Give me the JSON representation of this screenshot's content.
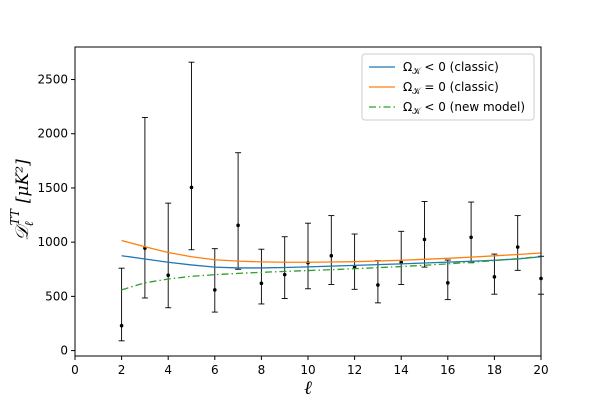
{
  "chart_data": {
    "type": "line",
    "title": "",
    "xlabel": "ℓ",
    "ylabel": "𝒟ℓTT [μK²]",
    "ylabel_main": "𝒟",
    "ylabel_sub": "ℓ",
    "ylabel_sup": "TT",
    "ylabel_unit": "[μK²]",
    "xlim": [
      0,
      20
    ],
    "ylim": [
      -50,
      2800
    ],
    "xticks": [
      0,
      2,
      4,
      6,
      8,
      10,
      12,
      14,
      16,
      18,
      20
    ],
    "yticks": [
      0,
      500,
      1000,
      1500,
      2000,
      2500
    ],
    "grid": false,
    "legend_position": "top-right",
    "colors": {
      "classic_negative": "#1f77b4",
      "classic_flat": "#ff7f0e",
      "new_model": "#2ca02c",
      "errorbars": "#000000"
    },
    "series": [
      {
        "name": "Ω𝒦 < 0 (classic)",
        "label_main": "Ω",
        "label_sub": "𝒦",
        "label_rest": " < 0 (classic)",
        "style": "solid",
        "color_key": "classic_negative",
        "x": [
          2,
          3,
          4,
          5,
          6,
          7,
          8,
          9,
          10,
          11,
          12,
          13,
          14,
          15,
          16,
          17,
          18,
          19,
          20
        ],
        "values": [
          875,
          845,
          815,
          790,
          770,
          762,
          762,
          766,
          772,
          779,
          786,
          793,
          800,
          808,
          816,
          824,
          833,
          845,
          865
        ]
      },
      {
        "name": "Ω𝒦 = 0 (classic)",
        "label_main": "Ω",
        "label_sub": "𝒦",
        "label_rest": " = 0 (classic)",
        "style": "solid",
        "color_key": "classic_flat",
        "x": [
          2,
          3,
          4,
          5,
          6,
          7,
          8,
          9,
          10,
          11,
          12,
          13,
          14,
          15,
          16,
          17,
          18,
          19,
          20
        ],
        "values": [
          1015,
          958,
          905,
          865,
          838,
          825,
          818,
          815,
          815,
          817,
          820,
          826,
          833,
          842,
          851,
          862,
          874,
          886,
          900
        ]
      },
      {
        "name": "Ω𝒦 < 0 (new model)",
        "label_main": "Ω",
        "label_sub": "𝒦",
        "label_rest": " < 0 (new model)",
        "style": "dashdot",
        "color_key": "new_model",
        "x": [
          2,
          3,
          4,
          5,
          6,
          7,
          8,
          9,
          10,
          11,
          12,
          13,
          14,
          15,
          16,
          17,
          18,
          19,
          20
        ],
        "values": [
          560,
          625,
          660,
          685,
          700,
          712,
          722,
          730,
          738,
          746,
          755,
          765,
          775,
          787,
          800,
          815,
          830,
          848,
          868
        ]
      }
    ],
    "data_points": [
      {
        "x": 2,
        "y": 230,
        "low": 90,
        "high": 760
      },
      {
        "x": 3,
        "y": 945,
        "low": 485,
        "high": 2150
      },
      {
        "x": 4,
        "y": 695,
        "low": 395,
        "high": 1360
      },
      {
        "x": 5,
        "y": 1505,
        "low": 930,
        "high": 2660
      },
      {
        "x": 6,
        "y": 560,
        "low": 355,
        "high": 940
      },
      {
        "x": 7,
        "y": 1155,
        "low": 750,
        "high": 1825
      },
      {
        "x": 8,
        "y": 620,
        "low": 430,
        "high": 935
      },
      {
        "x": 9,
        "y": 700,
        "low": 480,
        "high": 1050
      },
      {
        "x": 10,
        "y": 810,
        "low": 570,
        "high": 1175
      },
      {
        "x": 11,
        "y": 875,
        "low": 610,
        "high": 1245
      },
      {
        "x": 12,
        "y": 770,
        "low": 565,
        "high": 1075
      },
      {
        "x": 13,
        "y": 605,
        "low": 440,
        "high": 830
      },
      {
        "x": 14,
        "y": 815,
        "low": 610,
        "high": 1100
      },
      {
        "x": 15,
        "y": 1025,
        "low": 770,
        "high": 1375
      },
      {
        "x": 16,
        "y": 625,
        "low": 470,
        "high": 835
      },
      {
        "x": 17,
        "y": 1045,
        "low": 810,
        "high": 1370
      },
      {
        "x": 18,
        "y": 680,
        "low": 520,
        "high": 890
      },
      {
        "x": 19,
        "y": 955,
        "low": 740,
        "high": 1245
      },
      {
        "x": 20,
        "y": 665,
        "low": 520,
        "high": 870
      }
    ]
  }
}
